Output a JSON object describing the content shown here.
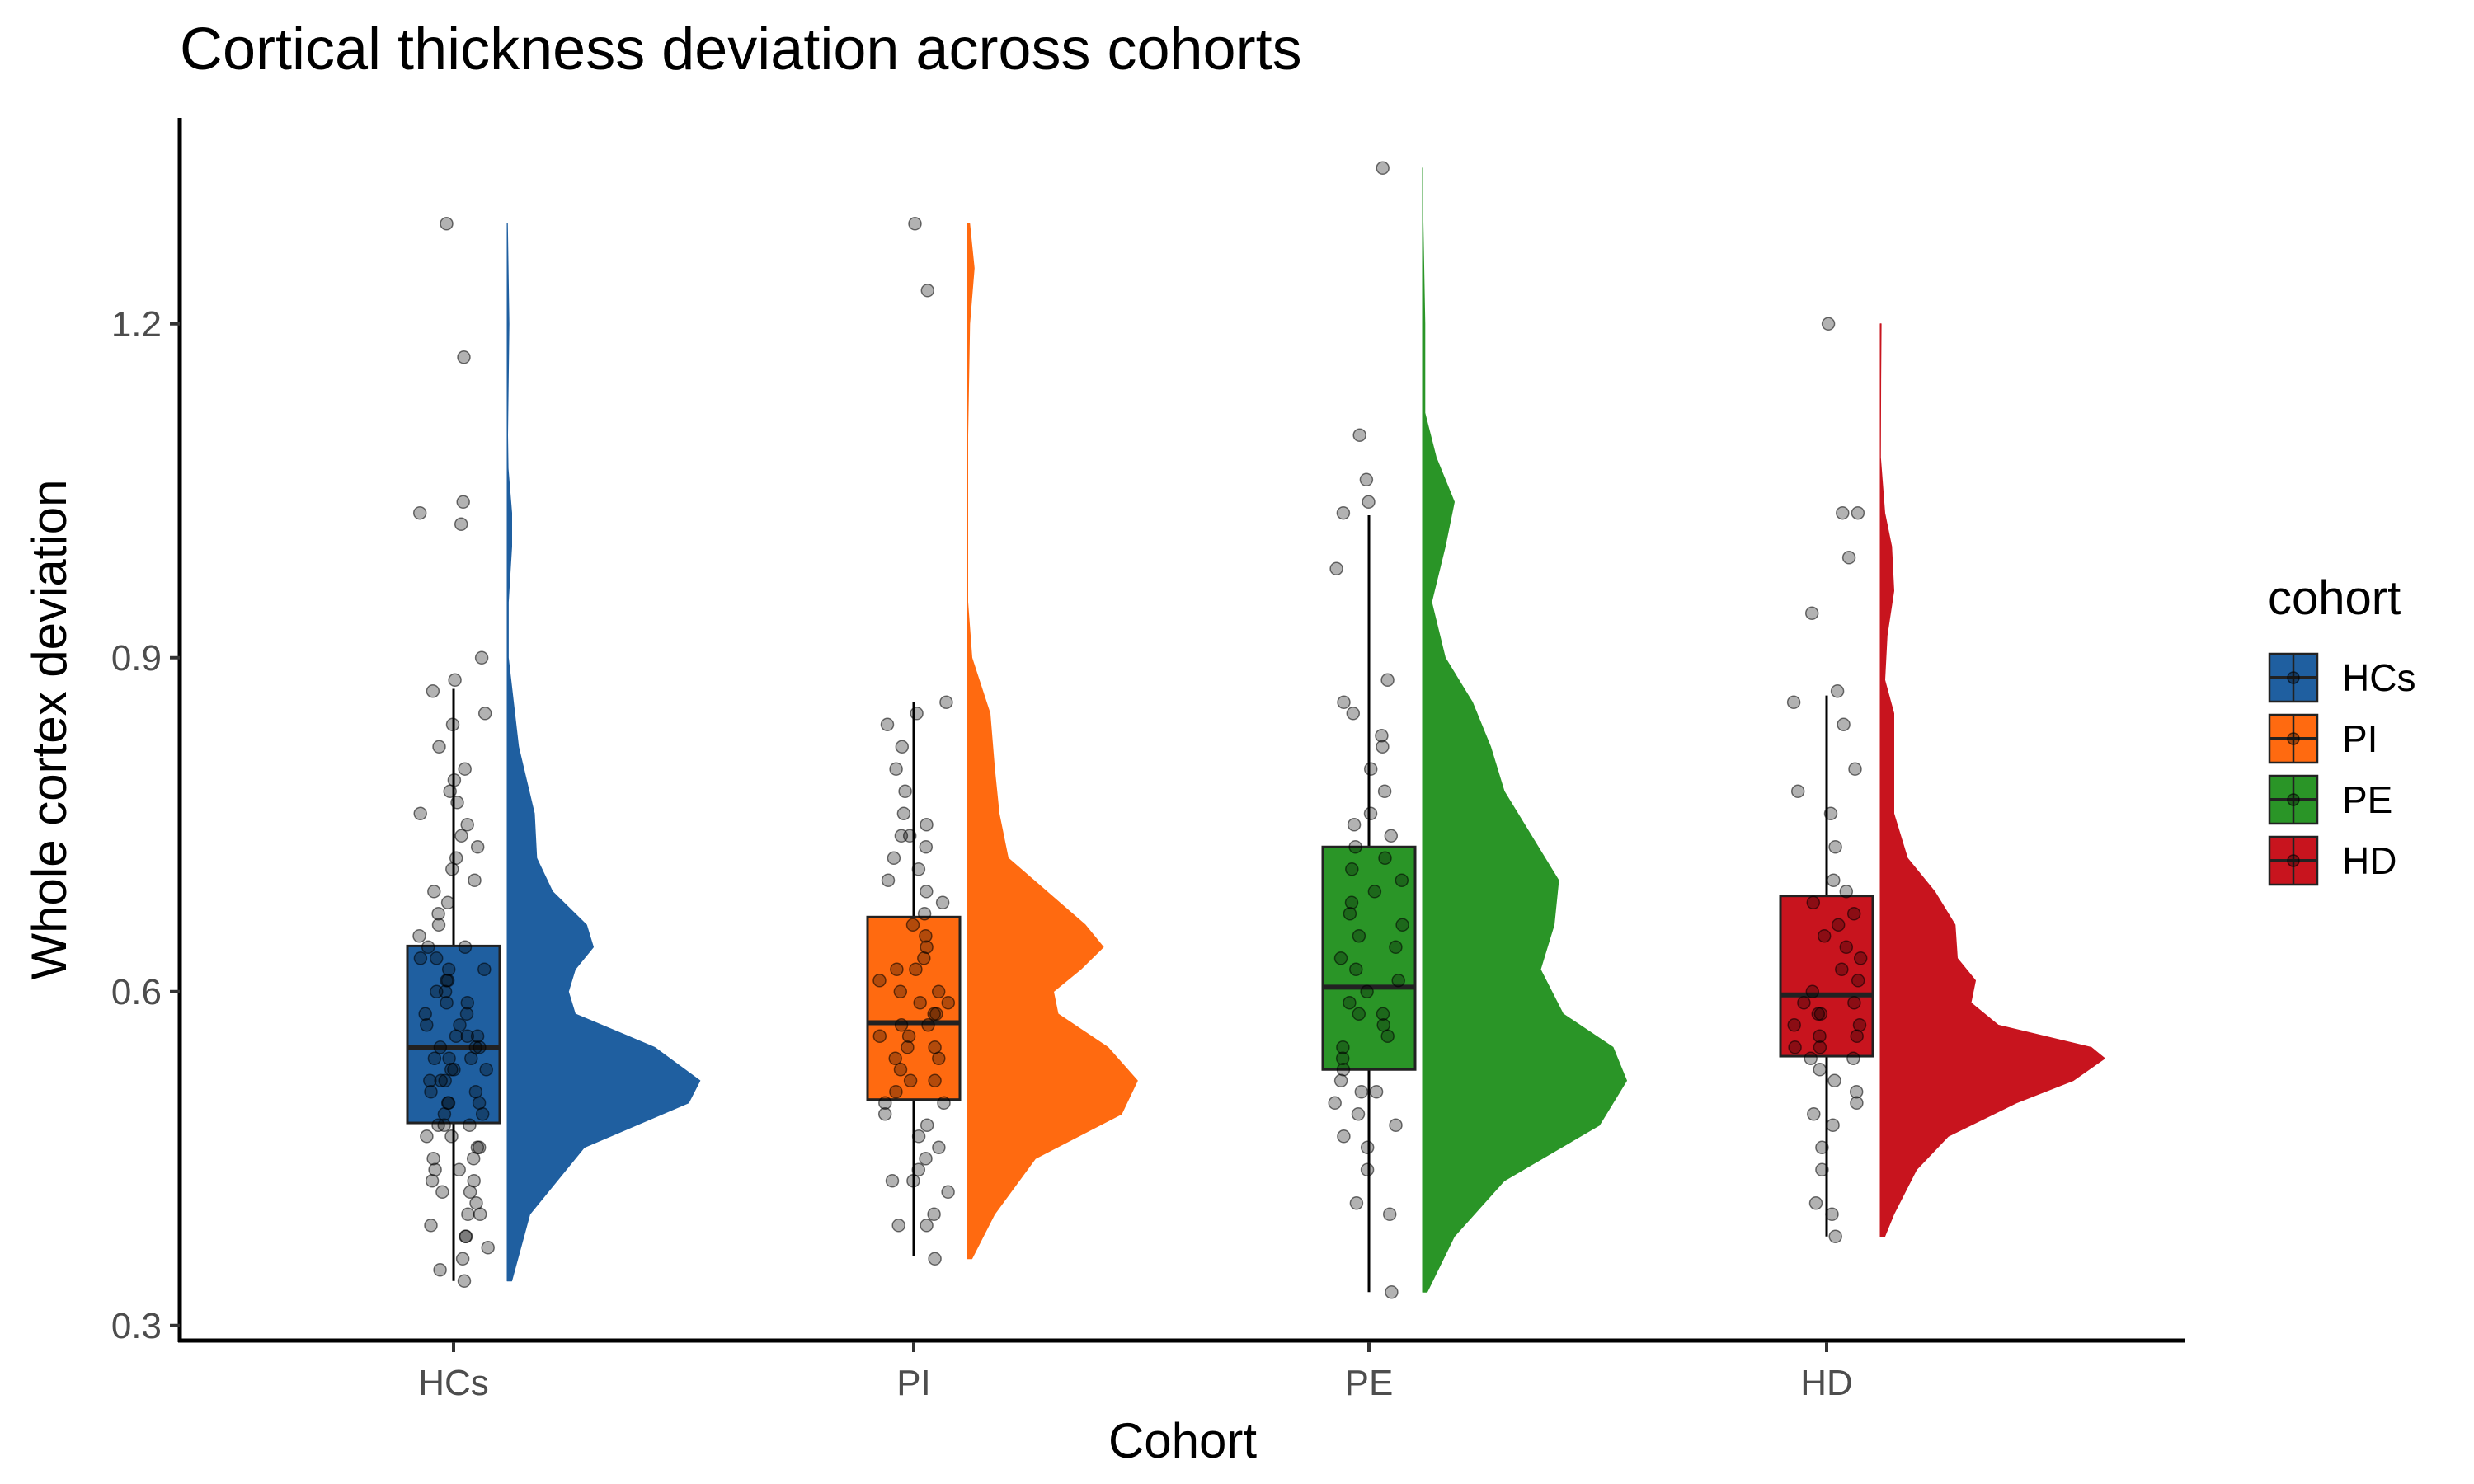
{
  "chart_data": {
    "type": "raincloud",
    "title": "Cortical thickness deviation across cohorts",
    "xlabel": "Cohort",
    "ylabel": "Whole cortex deviation",
    "ylim": [
      0.285,
      1.385
    ],
    "yticks": [
      0.3,
      0.6,
      0.9,
      1.2
    ],
    "ytick_labels": [
      "0.3",
      "0.6",
      "0.9",
      "1.2"
    ],
    "categories": [
      "HCs",
      "PI",
      "PE",
      "HD"
    ],
    "legend": {
      "title": "cohort",
      "position": "right",
      "entries": [
        "HCs",
        "PI",
        "PE",
        "HD"
      ]
    },
    "grid": false,
    "series": [
      {
        "category": "HCs",
        "color": "#1f5fa0",
        "box": {
          "q1": 0.482,
          "median": 0.55,
          "q3": 0.641,
          "whisker_low": 0.34,
          "whisker_high": 0.872
        },
        "density": {
          "y": [
            0.34,
            0.4,
            0.46,
            0.5,
            0.52,
            0.55,
            0.58,
            0.6,
            0.62,
            0.64,
            0.66,
            0.69,
            0.72,
            0.76,
            0.82,
            0.9,
            0.95,
            1.0,
            1.03,
            1.07,
            1.1,
            1.2,
            1.29
          ],
          "d": [
            0.02,
            0.1,
            0.34,
            0.8,
            0.85,
            0.65,
            0.3,
            0.27,
            0.3,
            0.38,
            0.35,
            0.2,
            0.13,
            0.12,
            0.05,
            0.005,
            0.005,
            0.02,
            0.02,
            0.004,
            0.002,
            0.008,
            0.001
          ]
        },
        "points": [
          0.34,
          0.35,
          0.36,
          0.37,
          0.38,
          0.38,
          0.39,
          0.4,
          0.4,
          0.41,
          0.42,
          0.42,
          0.43,
          0.43,
          0.44,
          0.44,
          0.45,
          0.45,
          0.46,
          0.46,
          0.47,
          0.47,
          0.48,
          0.48,
          0.48,
          0.49,
          0.49,
          0.5,
          0.5,
          0.5,
          0.51,
          0.51,
          0.52,
          0.52,
          0.52,
          0.53,
          0.53,
          0.53,
          0.54,
          0.54,
          0.54,
          0.55,
          0.55,
          0.55,
          0.56,
          0.56,
          0.56,
          0.57,
          0.57,
          0.58,
          0.58,
          0.59,
          0.59,
          0.6,
          0.6,
          0.61,
          0.61,
          0.62,
          0.62,
          0.63,
          0.63,
          0.64,
          0.64,
          0.65,
          0.66,
          0.67,
          0.68,
          0.69,
          0.7,
          0.71,
          0.72,
          0.73,
          0.74,
          0.75,
          0.76,
          0.77,
          0.78,
          0.79,
          0.8,
          0.82,
          0.84,
          0.85,
          0.87,
          0.88,
          0.9,
          1.02,
          1.03,
          1.04,
          1.17,
          1.29
        ]
      },
      {
        "category": "PI",
        "color": "#ff6a10",
        "box": {
          "q1": 0.503,
          "median": 0.572,
          "q3": 0.667,
          "whisker_low": 0.362,
          "whisker_high": 0.86
        },
        "density": {
          "y": [
            0.36,
            0.4,
            0.45,
            0.49,
            0.52,
            0.55,
            0.58,
            0.6,
            0.62,
            0.64,
            0.66,
            0.69,
            0.72,
            0.76,
            0.8,
            0.85,
            0.9,
            0.95,
            1.0,
            1.1,
            1.2,
            1.25,
            1.29
          ],
          "d": [
            0.02,
            0.12,
            0.3,
            0.68,
            0.75,
            0.62,
            0.4,
            0.38,
            0.5,
            0.6,
            0.52,
            0.35,
            0.18,
            0.14,
            0.12,
            0.1,
            0.02,
            0.002,
            0.002,
            0.002,
            0.01,
            0.03,
            0.01
          ]
        },
        "points": [
          0.36,
          0.39,
          0.39,
          0.4,
          0.42,
          0.43,
          0.43,
          0.44,
          0.45,
          0.46,
          0.47,
          0.48,
          0.49,
          0.5,
          0.5,
          0.51,
          0.52,
          0.52,
          0.53,
          0.54,
          0.54,
          0.55,
          0.55,
          0.56,
          0.56,
          0.57,
          0.57,
          0.58,
          0.58,
          0.59,
          0.59,
          0.6,
          0.6,
          0.61,
          0.62,
          0.62,
          0.63,
          0.64,
          0.65,
          0.66,
          0.67,
          0.68,
          0.69,
          0.7,
          0.71,
          0.72,
          0.73,
          0.74,
          0.74,
          0.75,
          0.76,
          0.78,
          0.8,
          0.82,
          0.84,
          0.85,
          0.86,
          1.23,
          1.29
        ]
      },
      {
        "category": "PE",
        "color": "#2a9527",
        "box": {
          "q1": 0.53,
          "median": 0.604,
          "q3": 0.73,
          "whisker_low": 0.33,
          "whisker_high": 1.028
        },
        "density": {
          "y": [
            0.33,
            0.38,
            0.43,
            0.48,
            0.52,
            0.55,
            0.58,
            0.62,
            0.66,
            0.7,
            0.74,
            0.78,
            0.82,
            0.86,
            0.9,
            0.95,
            1.0,
            1.04,
            1.08,
            1.12,
            1.2,
            1.3,
            1.34
          ],
          "d": [
            0.02,
            0.14,
            0.36,
            0.78,
            0.9,
            0.84,
            0.62,
            0.52,
            0.58,
            0.6,
            0.48,
            0.36,
            0.3,
            0.22,
            0.1,
            0.04,
            0.1,
            0.14,
            0.06,
            0.01,
            0.01,
            0.001,
            0.001
          ]
        },
        "points": [
          0.33,
          0.4,
          0.41,
          0.44,
          0.46,
          0.47,
          0.48,
          0.49,
          0.5,
          0.51,
          0.51,
          0.52,
          0.53,
          0.54,
          0.55,
          0.56,
          0.57,
          0.58,
          0.58,
          0.59,
          0.6,
          0.61,
          0.62,
          0.63,
          0.64,
          0.65,
          0.66,
          0.67,
          0.68,
          0.69,
          0.7,
          0.71,
          0.72,
          0.73,
          0.74,
          0.75,
          0.76,
          0.78,
          0.8,
          0.82,
          0.83,
          0.85,
          0.86,
          0.88,
          0.98,
          1.03,
          1.04,
          1.06,
          1.1,
          1.34
        ]
      },
      {
        "category": "HD",
        "color": "#c8141e",
        "box": {
          "q1": 0.542,
          "median": 0.597,
          "q3": 0.686,
          "whisker_low": 0.38,
          "whisker_high": 0.866
        },
        "density": {
          "y": [
            0.38,
            0.4,
            0.44,
            0.47,
            0.5,
            0.52,
            0.54,
            0.55,
            0.57,
            0.59,
            0.61,
            0.63,
            0.66,
            0.69,
            0.72,
            0.76,
            0.8,
            0.85,
            0.88,
            0.92,
            0.96,
            1.0,
            1.03,
            1.08,
            1.15,
            1.2
          ],
          "d": [
            0.02,
            0.06,
            0.16,
            0.3,
            0.6,
            0.85,
            0.99,
            0.93,
            0.52,
            0.4,
            0.42,
            0.34,
            0.33,
            0.24,
            0.12,
            0.06,
            0.06,
            0.06,
            0.02,
            0.03,
            0.06,
            0.05,
            0.02,
            0.001,
            0.002,
            0.004
          ]
        },
        "points": [
          0.38,
          0.4,
          0.41,
          0.44,
          0.46,
          0.48,
          0.49,
          0.5,
          0.51,
          0.52,
          0.53,
          0.54,
          0.54,
          0.55,
          0.55,
          0.56,
          0.56,
          0.57,
          0.57,
          0.58,
          0.58,
          0.59,
          0.59,
          0.6,
          0.61,
          0.62,
          0.63,
          0.64,
          0.65,
          0.66,
          0.67,
          0.68,
          0.69,
          0.7,
          0.73,
          0.76,
          0.78,
          0.8,
          0.84,
          0.86,
          0.87,
          0.94,
          0.99,
          1.03,
          1.03,
          1.2
        ]
      }
    ]
  }
}
